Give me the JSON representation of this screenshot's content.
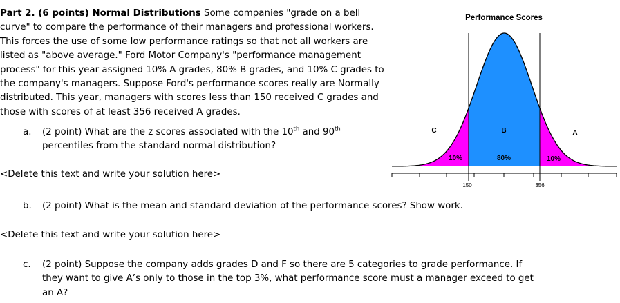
{
  "part": {
    "heading": "Part 2. (6 points) Normal Distributions",
    "body": " Some companies \"grade on a bell curve\" to compare the performance of their managers and professional workers. This forces the use of some low performance ratings so that not all workers are listed as \"above average.\" Ford Motor Company's \"performance management process\" for this year assigned 10% A grades, 80% B grades, and 10% C grades to the company's managers. Suppose Ford's performance scores really are Normally distributed. This year, managers with scores less than 150 received C grades and those with scores of at least 356 received A grades."
  },
  "questions": [
    {
      "marker": "a.",
      "line1_pre": "(2 point) What are the z scores associated with the 10",
      "sup1": "th",
      "line1_mid": " and 90",
      "sup2": "th",
      "line2": "percentiles from the standard normal distribution?"
    },
    {
      "marker": "b.",
      "text": "(2 point) What is the mean and standard deviation of the performance scores? Show work."
    },
    {
      "marker": "c.",
      "text": "(2 point) Suppose the company adds grades D and F so there are 5 categories to grade performance. If they want to give A’s only to those in the top 3%, what performance score must a manager exceed to get an A?"
    }
  ],
  "placeholders": [
    "<Delete this text and write your solution here>",
    "<Delete this text and write your solution here>"
  ],
  "figure": {
    "title": "Performance Scores",
    "regions": [
      {
        "grade": "C",
        "pct": "10%",
        "color": "#ff00ff"
      },
      {
        "grade": "B",
        "pct": "80%",
        "color": "#1e90ff"
      },
      {
        "grade": "A",
        "pct": "10%",
        "color": "#ff00ff"
      }
    ],
    "tick_labels": [
      "150",
      "356"
    ],
    "cutoffs": [
      150,
      356
    ]
  }
}
